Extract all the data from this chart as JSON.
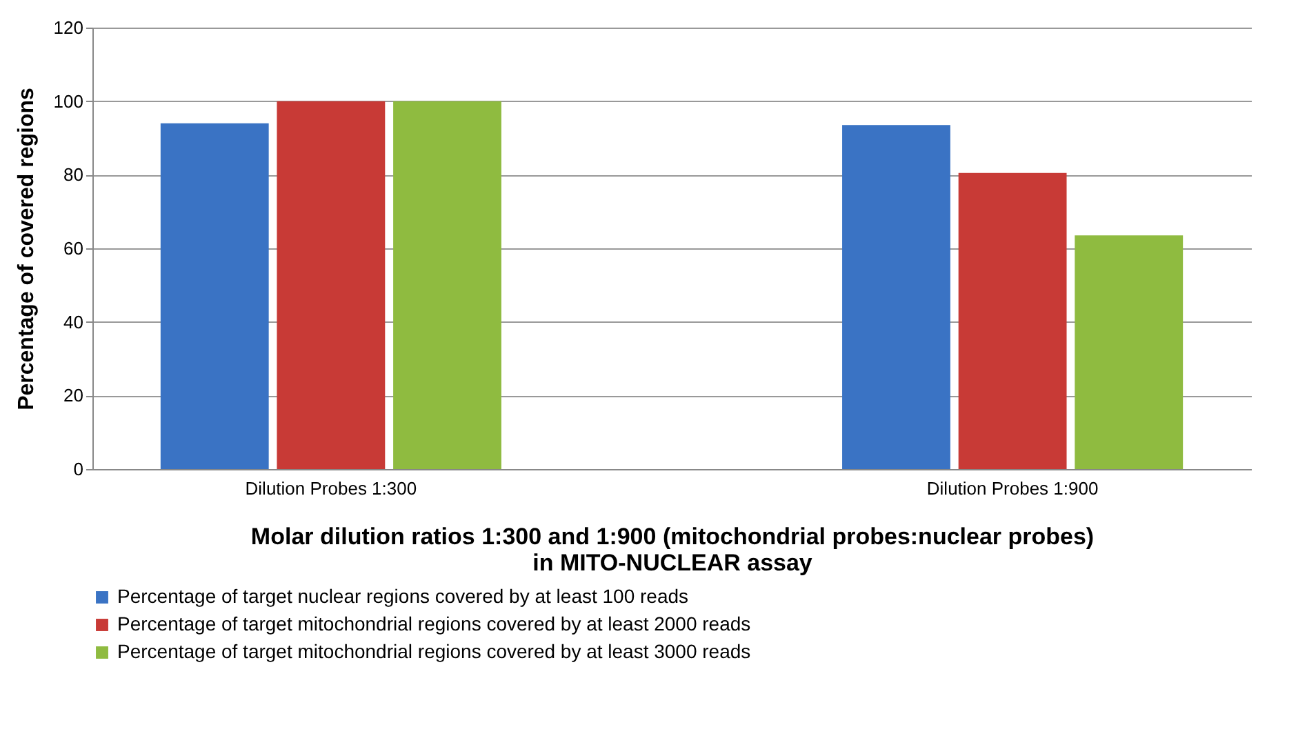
{
  "chart_data": {
    "type": "bar",
    "xlabel": "Molar dilution ratios 1:300 and 1:900 (mitochondrial probes:nuclear probes)\nin MITO-NUCLEAR assay",
    "ylabel": "Percentage of covered regions",
    "categories": [
      "Dilution Probes 1:300",
      "Dilution Probes 1:900"
    ],
    "series": [
      {
        "name": "Percentage of target nuclear regions covered by at least 100 reads",
        "color": "#3a73c4",
        "values": [
          94,
          93.5
        ]
      },
      {
        "name": "Percentage of target mitochondrial regions covered by at least 2000 reads",
        "color": "#c83a36",
        "values": [
          100,
          80.5
        ]
      },
      {
        "name": "Percentage of target mitochondrial regions covered by at least 3000 reads",
        "color": "#8fbb40",
        "values": [
          100,
          63.5
        ]
      }
    ],
    "ylim": [
      0,
      120
    ],
    "yticks": [
      0,
      20,
      40,
      60,
      80,
      100,
      120
    ],
    "grid": "y",
    "legend": "bottom"
  }
}
